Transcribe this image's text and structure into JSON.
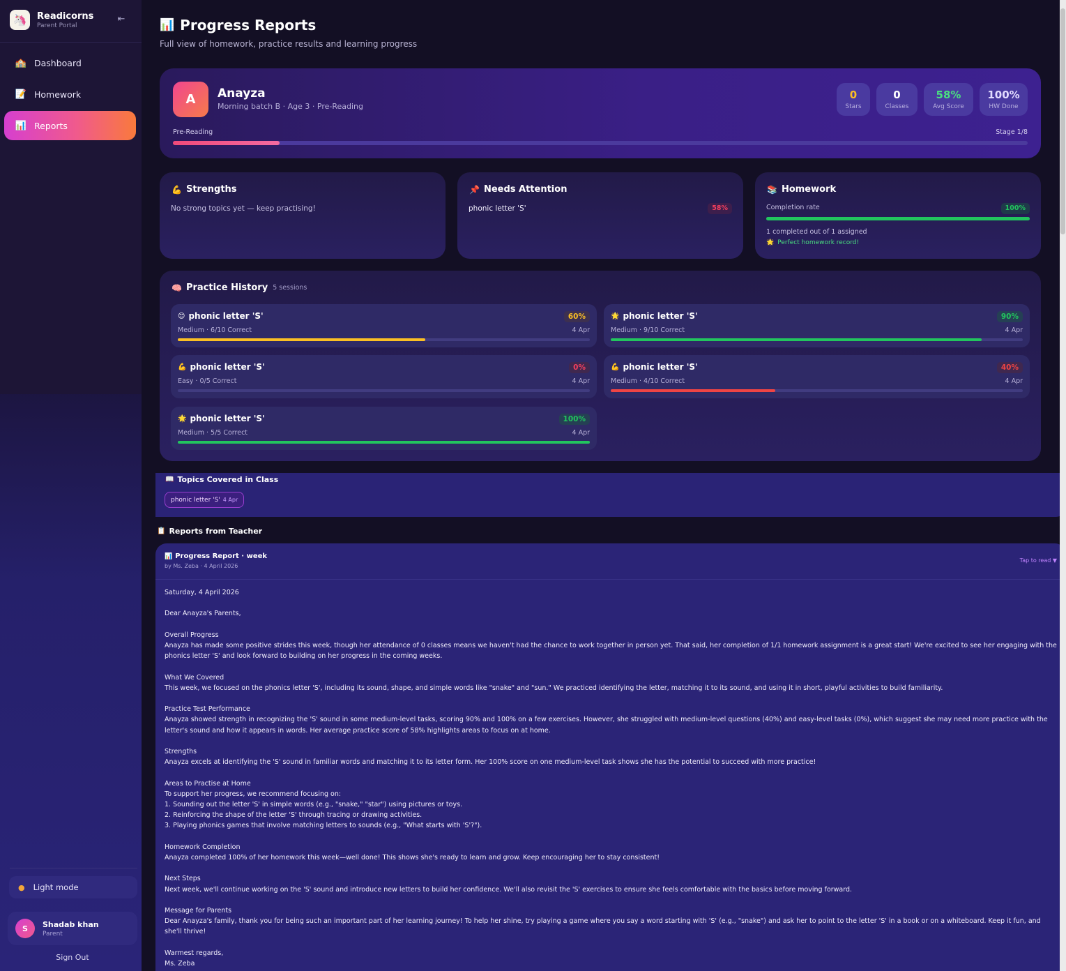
{
  "brand": {
    "name": "Readicorns",
    "subtitle": "Parent Portal",
    "logo_icon": "🦄",
    "collapse_icon": "⇤"
  },
  "nav": [
    {
      "label": "Dashboard",
      "icon": "🏫",
      "active": false
    },
    {
      "label": "Homework",
      "icon": "📝",
      "active": false
    },
    {
      "label": "Reports",
      "icon": "📊",
      "active": true
    }
  ],
  "sidebar_footer": {
    "light_mode_label": "Light mode",
    "light_mode_icon": "●",
    "user_initial": "S",
    "user_name": "Shadab khan",
    "user_role": "Parent",
    "sign_out": "Sign Out"
  },
  "header": {
    "title": "Progress Reports",
    "title_icon": "📊",
    "subtitle": "Full view of homework, practice results and learning progress"
  },
  "child": {
    "initial": "A",
    "name": "Anayza",
    "meta": "Morning batch B · Age 3 · Pre-Reading",
    "stage_label": "Pre-Reading",
    "stage_text": "Stage 1/8",
    "stage_progress": 0.125,
    "stats": [
      {
        "value": "0",
        "label": "Stars",
        "color": "#fbbf24"
      },
      {
        "value": "0",
        "label": "Classes",
        "color": "#ffffff"
      },
      {
        "value": "58%",
        "label": "Avg Score",
        "color": "#4ade80"
      },
      {
        "value": "100%",
        "label": "HW Done",
        "color": "#e3dcff"
      }
    ]
  },
  "strengths": {
    "title": "Strengths",
    "icon": "💪",
    "text": "No strong topics yet — keep practising!"
  },
  "needs_attention": {
    "title": "Needs Attention",
    "icon": "📌",
    "topic": "phonic letter 'S'",
    "score": "58%"
  },
  "homework": {
    "title": "Homework",
    "icon": "📚",
    "completion_label": "Completion rate",
    "completion_value": "100%",
    "completion_fraction": 1.0,
    "summary": "1 completed out of 1 assigned",
    "record_icon": "🌟",
    "record_text": "Perfect homework record!"
  },
  "practice": {
    "title": "Practice History",
    "icon": "🧠",
    "count_text": "5 sessions",
    "sessions": [
      {
        "icon": "😊",
        "title": "phonic letter 'S'",
        "meta": "Medium · 6/10 Correct",
        "date": "4 Apr",
        "score": "60%",
        "fraction": 0.6,
        "color": "#fbbf24"
      },
      {
        "icon": "🌟",
        "title": "phonic letter 'S'",
        "meta": "Medium · 9/10 Correct",
        "date": "4 Apr",
        "score": "90%",
        "fraction": 0.9,
        "color": "#22c55e"
      },
      {
        "icon": "💪",
        "title": "phonic letter 'S'",
        "meta": "Easy · 0/5 Correct",
        "date": "4 Apr",
        "score": "0%",
        "fraction": 0.0,
        "color": "#f43f5e"
      },
      {
        "icon": "💪",
        "title": "phonic letter 'S'",
        "meta": "Medium · 4/10 Correct",
        "date": "4 Apr",
        "score": "40%",
        "fraction": 0.4,
        "color": "#ef4444"
      },
      {
        "icon": "🌟",
        "title": "phonic letter 'S'",
        "meta": "Medium · 5/5 Correct",
        "date": "4 Apr",
        "score": "100%",
        "fraction": 1.0,
        "color": "#22c55e"
      }
    ]
  },
  "topics": {
    "title": "Topics Covered in Class",
    "icon": "📖",
    "chips": [
      {
        "label": "phonic letter 'S'",
        "date": "4 Apr"
      }
    ]
  },
  "teacher_reports": {
    "title": "Reports from Teacher",
    "icon": "📋",
    "report": {
      "title": "Progress Report · week",
      "icon": "📊",
      "byline": "by Ms. Zeba · 4 April 2026",
      "toggle": "Tap to read ▼",
      "lines": [
        "Saturday, 4 April 2026",
        "",
        "Dear Anayza's Parents,",
        "",
        "Overall Progress",
        "Anayza has made some positive strides this week, though her attendance of 0 classes means we haven't had the chance to work together in person yet. That said, her completion of 1/1 homework assignment is a great start! We're excited to see her engaging with the phonics letter 'S' and look forward to building on her progress in the coming weeks.",
        "",
        "What We Covered",
        "This week, we focused on the phonics letter 'S', including its sound, shape, and simple words like \"snake\" and \"sun.\" We practiced identifying the letter, matching it to its sound, and using it in short, playful activities to build familiarity.",
        "",
        "Practice Test Performance",
        "Anayza showed strength in recognizing the 'S' sound in some medium-level tasks, scoring 90% and 100% on a few exercises. However, she struggled with medium-level questions (40%) and easy-level tasks (0%), which suggest she may need more practice with the letter's sound and how it appears in words. Her average practice score of 58% highlights areas to focus on at home.",
        "",
        "Strengths",
        "Anayza excels at identifying the 'S' sound in familiar words and matching it to its letter form. Her 100% score on one medium-level task shows she has the potential to succeed with more practice!",
        "",
        "Areas to Practise at Home",
        "To support her progress, we recommend focusing on:",
        "1. Sounding out the letter 'S' in simple words (e.g., \"snake,\" \"star\") using pictures or toys.",
        "2. Reinforcing the shape of the letter 'S' through tracing or drawing activities.",
        "3. Playing phonics games that involve matching letters to sounds (e.g., \"What starts with 'S'?\").",
        "",
        "Homework Completion",
        "Anayza completed 100% of her homework this week—well done! This shows she's ready to learn and grow. Keep encouraging her to stay consistent!",
        "",
        "Next Steps",
        "Next week, we'll continue working on the 'S' sound and introduce new letters to build her confidence. We'll also revisit the 'S' exercises to ensure she feels comfortable with the basics before moving forward.",
        "",
        "Message for Parents",
        "Dear Anayza's family, thank you for being such an important part of her learning journey! To help her shine, try playing a game where you say a word starting with 'S' (e.g., \"snake\") and ask her to point to the letter 'S' in a book or on a whiteboard. Keep it fun, and she'll thrive!",
        "",
        "Warmest regards,",
        "Ms. Zeba"
      ]
    }
  },
  "colors": {
    "accent_gradient_start": "#d63fd0",
    "accent_gradient_end": "#f97a3c",
    "success": "#22c55e",
    "warning": "#fbbf24",
    "danger": "#ef4444"
  }
}
